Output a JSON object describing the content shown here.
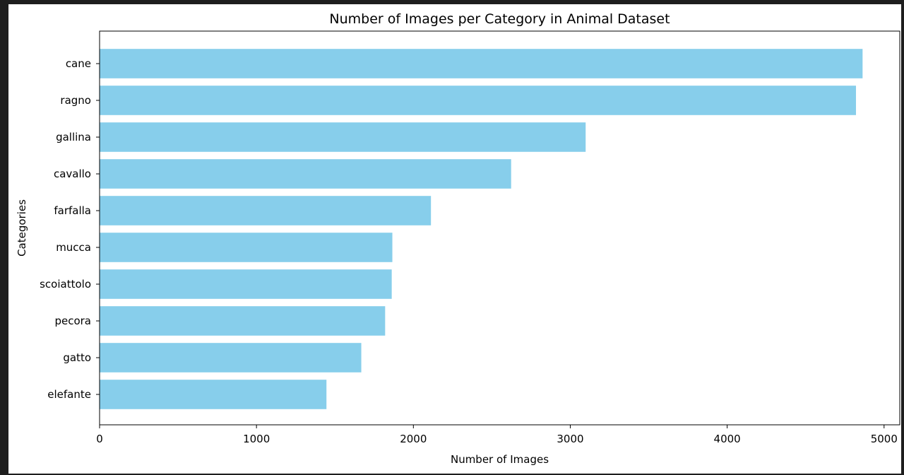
{
  "chart_data": {
    "type": "bar",
    "orientation": "horizontal",
    "title": "Number of Images per Category in Animal Dataset",
    "xlabel": "Number of Images",
    "ylabel": "Categories",
    "categories": [
      "cane",
      "ragno",
      "gallina",
      "cavallo",
      "farfalla",
      "mucca",
      "scoiattolo",
      "pecora",
      "gatto",
      "elefante"
    ],
    "values": [
      4863,
      4821,
      3098,
      2623,
      2112,
      1866,
      1862,
      1820,
      1668,
      1446
    ],
    "xlim": [
      0,
      5100
    ],
    "xticks": [
      0,
      1000,
      2000,
      3000,
      4000,
      5000
    ],
    "bar_color": "#87ceeb",
    "grid": false
  }
}
